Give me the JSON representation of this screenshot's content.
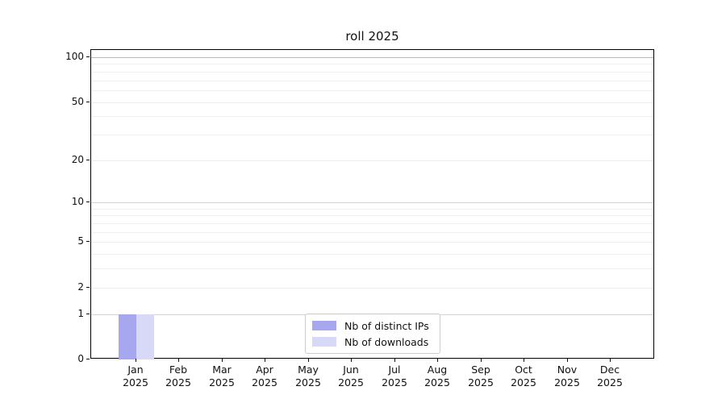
{
  "chart_data": {
    "type": "bar",
    "title": "roll 2025",
    "categories": [
      "Jan",
      "Feb",
      "Mar",
      "Apr",
      "May",
      "Jun",
      "Jul",
      "Aug",
      "Sep",
      "Oct",
      "Nov",
      "Dec"
    ],
    "category_year": "2025",
    "series": [
      {
        "name": "Nb of distinct IPs",
        "color": "#a7a7f0",
        "values": [
          1,
          0,
          0,
          0,
          0,
          0,
          0,
          0,
          0,
          0,
          0,
          0
        ]
      },
      {
        "name": "Nb of downloads",
        "color": "#d8d8f7",
        "values": [
          1,
          0,
          0,
          0,
          0,
          0,
          0,
          0,
          0,
          0,
          0,
          0
        ]
      }
    ],
    "yscale": "log1p",
    "ylim": [
      0,
      118
    ],
    "yticks": [
      0,
      1,
      2,
      5,
      10,
      20,
      50,
      100
    ],
    "yticks_minor": [
      3,
      4,
      6,
      7,
      8,
      9,
      30,
      40,
      60,
      70,
      80,
      90
    ],
    "grid": "horizontal",
    "legend_position": "lower center",
    "background": "#ffffff",
    "colors": {
      "grid_major": "#b9b9b9",
      "grid_mid": "#d2d2d2",
      "grid_minor": "#ececec",
      "axis": "#000000",
      "text": "#1a1a1a"
    }
  }
}
